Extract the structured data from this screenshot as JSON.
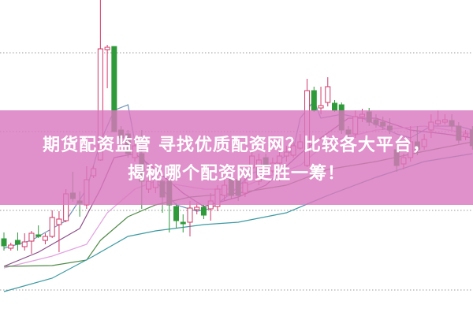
{
  "banner": {
    "line1": "期货配资监管 寻找优质配资网？比较各大平台，",
    "line2": "揭秘哪个配资网更胜一筹！",
    "color": "#d978be"
  },
  "chart_data": {
    "type": "candlestick",
    "title": "",
    "xlabel": "",
    "ylabel": "",
    "ylim": [
      0,
      40.1
    ],
    "grid": "horizontal dotted",
    "gridlines": [
      33.4,
      23.4,
      13.4,
      3.3
    ],
    "colors": {
      "up": "#d2386a",
      "down": "#2e9a3a",
      "grid": "#999999"
    },
    "candles": [
      [
        9.8,
        8.9,
        10.6,
        8.3
      ],
      [
        8.6,
        9.0,
        9.3,
        8.3
      ],
      [
        9.6,
        9.1,
        10.6,
        8.3
      ],
      [
        8.8,
        9.4,
        10.5,
        8.3
      ],
      [
        9.5,
        10.5,
        10.8,
        7.9
      ],
      [
        10.3,
        10.1,
        11.5,
        9.9
      ],
      [
        9.6,
        10.1,
        10.5,
        9.1
      ],
      [
        10.1,
        12.5,
        13.4,
        9.9
      ],
      [
        11.6,
        12.3,
        13.3,
        8.1
      ],
      [
        12.1,
        15.5,
        16.1,
        11.9
      ],
      [
        15.6,
        14.9,
        18.3,
        14.5
      ],
      [
        14.6,
        14.3,
        15.8,
        12.6
      ],
      [
        14.1,
        17.3,
        19.0,
        13.6
      ],
      [
        17.8,
        18.7,
        19.1,
        17.5
      ],
      [
        19.8,
        33.9,
        40.1,
        19.7
      ],
      [
        33.8,
        34.1,
        34.4,
        28.9
      ],
      [
        34.2,
        23.4,
        34.2,
        23.4
      ],
      [
        23.6,
        22.6,
        24.1,
        21.6
      ],
      [
        23.1,
        20.6,
        23.6,
        20.1
      ],
      [
        20.1,
        21.6,
        22.6,
        19.6
      ],
      [
        20.6,
        17.1,
        23.6,
        13.6
      ],
      [
        16.1,
        17.1,
        17.6,
        15.6
      ],
      [
        16.3,
        17.3,
        17.9,
        15.6
      ],
      [
        17.1,
        15.1,
        17.3,
        13.1
      ],
      [
        17.1,
        14.1,
        17.6,
        10.6
      ],
      [
        13.9,
        12.1,
        14.3,
        11.1
      ],
      [
        11.9,
        11.7,
        12.9,
        10.6
      ],
      [
        11.9,
        13.7,
        14.6,
        10.1
      ],
      [
        13.5,
        13.8,
        14.3,
        12.9
      ],
      [
        13.8,
        12.8,
        14.1,
        12.3
      ],
      [
        13.6,
        14.6,
        15.6,
        12.1
      ],
      [
        13.9,
        16.1,
        16.6,
        13.3
      ],
      [
        15.3,
        16.6,
        17.6,
        14.6
      ],
      [
        17.4,
        15.3,
        17.9,
        14.9
      ],
      [
        17.3,
        15.3,
        17.9,
        14.6
      ],
      [
        15.6,
        16.9,
        17.6,
        15.1
      ],
      [
        18.8,
        20.3,
        20.9,
        18.3
      ],
      [
        17.1,
        19.8,
        20.6,
        16.6
      ],
      [
        20.1,
        18.9,
        20.6,
        18.6
      ],
      [
        18.4,
        19.4,
        20.1,
        18.1
      ],
      [
        19.4,
        20.3,
        21.1,
        17.1
      ],
      [
        20.3,
        20.8,
        21.6,
        19.6
      ],
      [
        20.4,
        21.6,
        22.6,
        20.1
      ],
      [
        21.3,
        22.1,
        23.1,
        21.1
      ],
      [
        19.1,
        28.6,
        30.1,
        18.9
      ],
      [
        28.6,
        26.1,
        29.1,
        25.9
      ],
      [
        26.4,
        26.7,
        29.1,
        25.6
      ],
      [
        27.1,
        29.1,
        30.3,
        26.6
      ],
      [
        27.0,
        26.1,
        27.4,
        25.9
      ],
      [
        26.8,
        23.6,
        27.1,
        23.1
      ],
      [
        23.6,
        23.1,
        24.1,
        22.3
      ],
      [
        23.1,
        25.3,
        26.1,
        22.6
      ],
      [
        25.3,
        25.6,
        26.3,
        24.6
      ],
      [
        25.9,
        24.6,
        26.4,
        24.1
      ],
      [
        24.9,
        24.3,
        25.6,
        23.9
      ],
      [
        24.6,
        24.1,
        25.3,
        23.6
      ],
      [
        24.1,
        23.6,
        25.1,
        23.1
      ],
      [
        21.1,
        19.1,
        22.1,
        18.3
      ],
      [
        19.3,
        20.1,
        20.6,
        18.6
      ],
      [
        20.1,
        22.1,
        24.1,
        19.6
      ],
      [
        22.1,
        21.1,
        24.1,
        20.4
      ],
      [
        21.5,
        22.4,
        23.1,
        21.1
      ],
      [
        23.6,
        24.6,
        25.6,
        22.6
      ],
      [
        24.4,
        24.8,
        26.1,
        24.1
      ],
      [
        24.6,
        24.9,
        25.6,
        24.3
      ],
      [
        24.8,
        24.1,
        25.6,
        23.6
      ],
      [
        24.1,
        22.3,
        24.6,
        21.9
      ],
      [
        22.8,
        23.1,
        23.6,
        22.3
      ],
      [
        23.6,
        21.6,
        24.1,
        21.1
      ]
    ],
    "candle_fields": [
      "open",
      "close",
      "high",
      "low"
    ],
    "moving_averages": [
      {
        "color": "#6f93b8",
        "points": [
          [
            0,
            8.6
          ],
          [
            4,
            9.6
          ],
          [
            9,
            12.1
          ],
          [
            12,
            16.1
          ],
          [
            14,
            22.1
          ],
          [
            16,
            26.1
          ],
          [
            18,
            26.8
          ],
          [
            19,
            22.1
          ],
          [
            22,
            17.1
          ],
          [
            25,
            14.1
          ],
          [
            28,
            13.3
          ],
          [
            30,
            13.6
          ],
          [
            33,
            15.6
          ],
          [
            36,
            18.1
          ],
          [
            39,
            19.1
          ],
          [
            42,
            21.1
          ],
          [
            43,
            25.1
          ],
          [
            45,
            27.3
          ],
          [
            46,
            25.1
          ],
          [
            49,
            25.6
          ],
          [
            52,
            25.1
          ],
          [
            57,
            23.1
          ],
          [
            59,
            22.6
          ],
          [
            62,
            24.1
          ],
          [
            66,
            24.1
          ],
          [
            68,
            23.6
          ]
        ]
      },
      {
        "color": "#8a4a86",
        "points": [
          [
            0,
            6.3
          ],
          [
            5,
            8.1
          ],
          [
            11,
            11.1
          ],
          [
            14,
            16.1
          ],
          [
            16,
            20.1
          ],
          [
            19,
            20.6
          ],
          [
            22,
            18.6
          ],
          [
            26,
            15.6
          ],
          [
            29,
            13.9
          ],
          [
            34,
            15.1
          ],
          [
            38,
            16.6
          ],
          [
            43,
            20.6
          ],
          [
            46,
            22.6
          ],
          [
            50,
            25.1
          ],
          [
            54,
            25.1
          ],
          [
            59,
            23.6
          ],
          [
            64,
            23.1
          ],
          [
            68,
            22.6
          ]
        ]
      },
      {
        "color": "#e2a2e0",
        "points": [
          [
            0,
            6.1
          ],
          [
            7,
            7.6
          ],
          [
            12,
            9.1
          ],
          [
            15,
            13.1
          ],
          [
            19,
            16.1
          ],
          [
            22,
            17.1
          ],
          [
            29,
            16.1
          ],
          [
            34,
            16.1
          ],
          [
            38,
            17.6
          ],
          [
            43,
            19.1
          ],
          [
            47,
            22.1
          ],
          [
            54,
            23.6
          ],
          [
            61,
            24.1
          ],
          [
            68,
            23.1
          ]
        ]
      },
      {
        "color": "#4f8a46",
        "points": [
          [
            0,
            6.3
          ],
          [
            7,
            6.4
          ],
          [
            12,
            7.1
          ],
          [
            14,
            9.6
          ],
          [
            18,
            12.6
          ],
          [
            22,
            14.1
          ],
          [
            27,
            15.1
          ],
          [
            34,
            15.6
          ],
          [
            41,
            16.6
          ],
          [
            47,
            18.6
          ],
          [
            54,
            19.6
          ],
          [
            61,
            20.9
          ],
          [
            68,
            22.1
          ]
        ]
      },
      {
        "color": "#3c9aa2",
        "points": [
          [
            0,
            3.1
          ],
          [
            7,
            4.8
          ],
          [
            13,
            7.6
          ],
          [
            18,
            10.1
          ],
          [
            22,
            10.8
          ],
          [
            29,
            11.6
          ],
          [
            34,
            11.9
          ],
          [
            41,
            13.1
          ],
          [
            47,
            15.3
          ],
          [
            54,
            17.6
          ],
          [
            61,
            19.6
          ],
          [
            68,
            20.6
          ]
        ]
      }
    ]
  }
}
